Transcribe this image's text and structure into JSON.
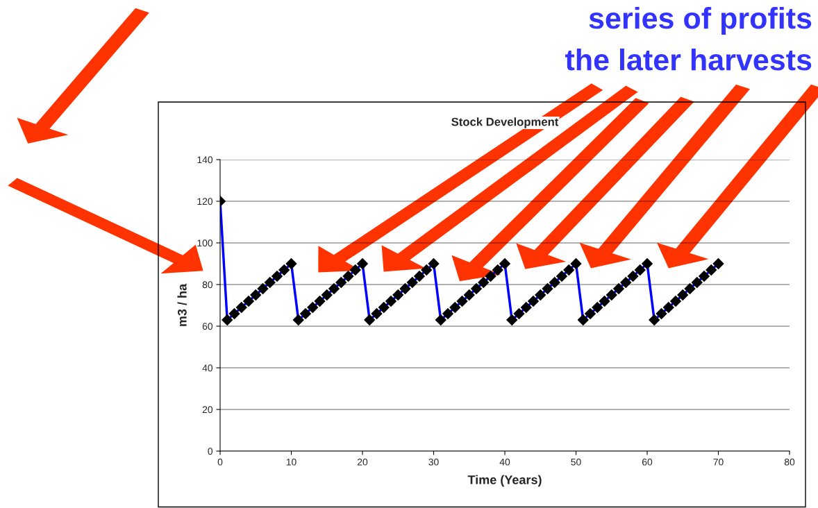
{
  "chart_data": {
    "type": "line",
    "title": "Stock Development",
    "xlabel": "Time (Years)",
    "ylabel": "m3 / ha",
    "annotations": [
      "series of profits",
      "the later harvests"
    ],
    "x": [
      0,
      1,
      2,
      3,
      4,
      5,
      6,
      7,
      8,
      9,
      10,
      11,
      12,
      13,
      14,
      15,
      16,
      17,
      18,
      19,
      20,
      21,
      22,
      23,
      24,
      25,
      26,
      27,
      28,
      29,
      30,
      31,
      32,
      33,
      34,
      35,
      36,
      37,
      38,
      39,
      40,
      41,
      42,
      43,
      44,
      45,
      46,
      47,
      48,
      49,
      50,
      51,
      52,
      53,
      54,
      55,
      56,
      57,
      58,
      59,
      60,
      61,
      62,
      63,
      64,
      65,
      66,
      67,
      68,
      69,
      70
    ],
    "series": [
      {
        "color": "#0000ff",
        "values": [
          120,
          63,
          66,
          69,
          72,
          75,
          78,
          81,
          84,
          87,
          90,
          63,
          66,
          69,
          72,
          75,
          78,
          81,
          84,
          87,
          90,
          63,
          66,
          69,
          72,
          75,
          78,
          81,
          84,
          87,
          90,
          63,
          66,
          69,
          72,
          75,
          78,
          81,
          84,
          87,
          90,
          63,
          66,
          69,
          72,
          75,
          78,
          81,
          84,
          87,
          90,
          63,
          66,
          69,
          72,
          75,
          78,
          81,
          84,
          87,
          90,
          63,
          66,
          69,
          72,
          75,
          78,
          81,
          84,
          87,
          90
        ],
        "colors": [
          "#000000",
          "#000000",
          "#000000",
          "#000000",
          "#000000",
          "#000000",
          "#000000",
          "#000000",
          "#000000",
          "#000000",
          "#000000",
          "#000000",
          "#000000",
          "#000000",
          "#000000",
          "#000000",
          "#000000",
          "#000000",
          "#000000",
          "#000000",
          "#000000",
          "#000000",
          "#000000",
          "#000000",
          "#000000",
          "#000000",
          "#000000",
          "#000000",
          "#000000",
          "#000000",
          "#000000",
          "#000000",
          "#000000",
          "#000000",
          "#000000",
          "#000000",
          "#000000",
          "#000000",
          "#000000",
          "#000000",
          "#000000",
          "#000000",
          "#000000",
          "#000000",
          "#000000",
          "#000000",
          "#000000",
          "#000000",
          "#000000",
          "#000000",
          "#000000",
          "#000000",
          "#000000",
          "#000000",
          "#000000",
          "#000000",
          "#000000",
          "#000000",
          "#000000",
          "#000000",
          "#000000",
          "#000000",
          "#000000",
          "#000000",
          "#000000",
          "#000000",
          "#000000",
          "#000000",
          "#000000",
          "#000000",
          "#000000"
        ]
      }
    ],
    "marker": "diamond",
    "line_style": "solid",
    "xlim": [
      0,
      80
    ],
    "xticks": [
      0,
      10,
      20,
      30,
      40,
      50,
      60,
      70,
      80
    ],
    "ylim": [
      0,
      140
    ],
    "yticks": [
      0,
      20,
      40,
      60,
      80,
      100,
      120,
      140
    ],
    "grid": "y",
    "legend": false
  }
}
